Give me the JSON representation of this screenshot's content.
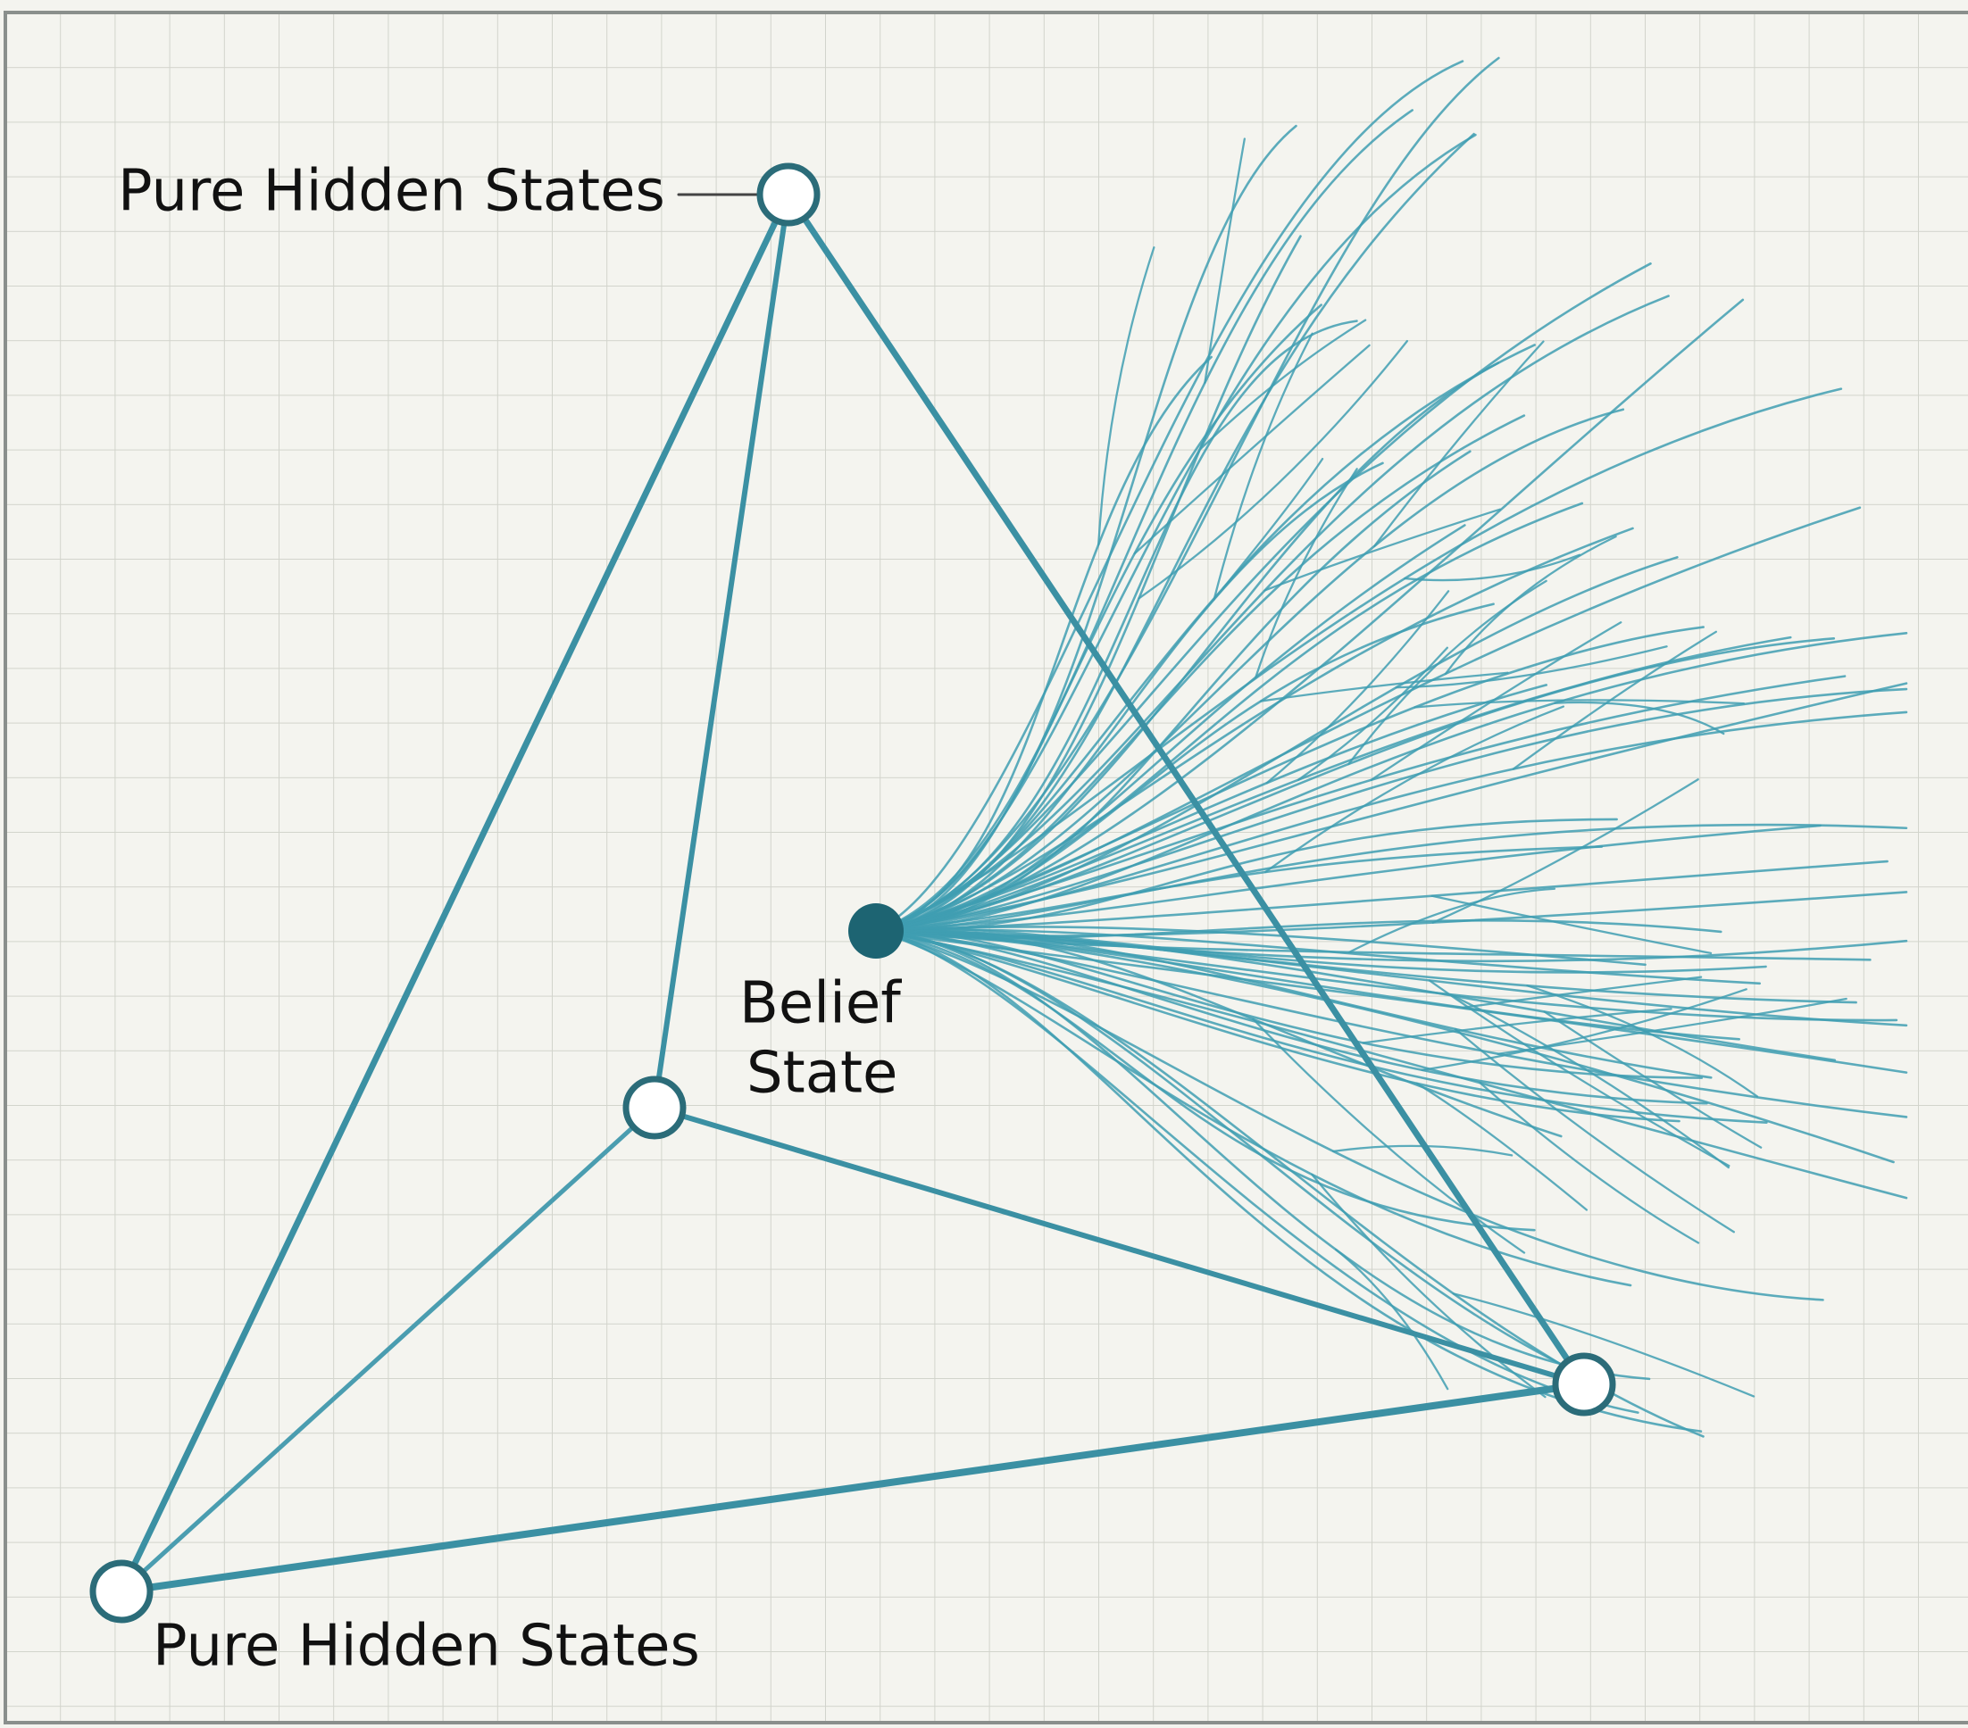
{
  "labels": {
    "top": "Pure Hidden States",
    "bottom": "Pure Hidden States",
    "belief": [
      "Belief",
      "State"
    ]
  }
}
